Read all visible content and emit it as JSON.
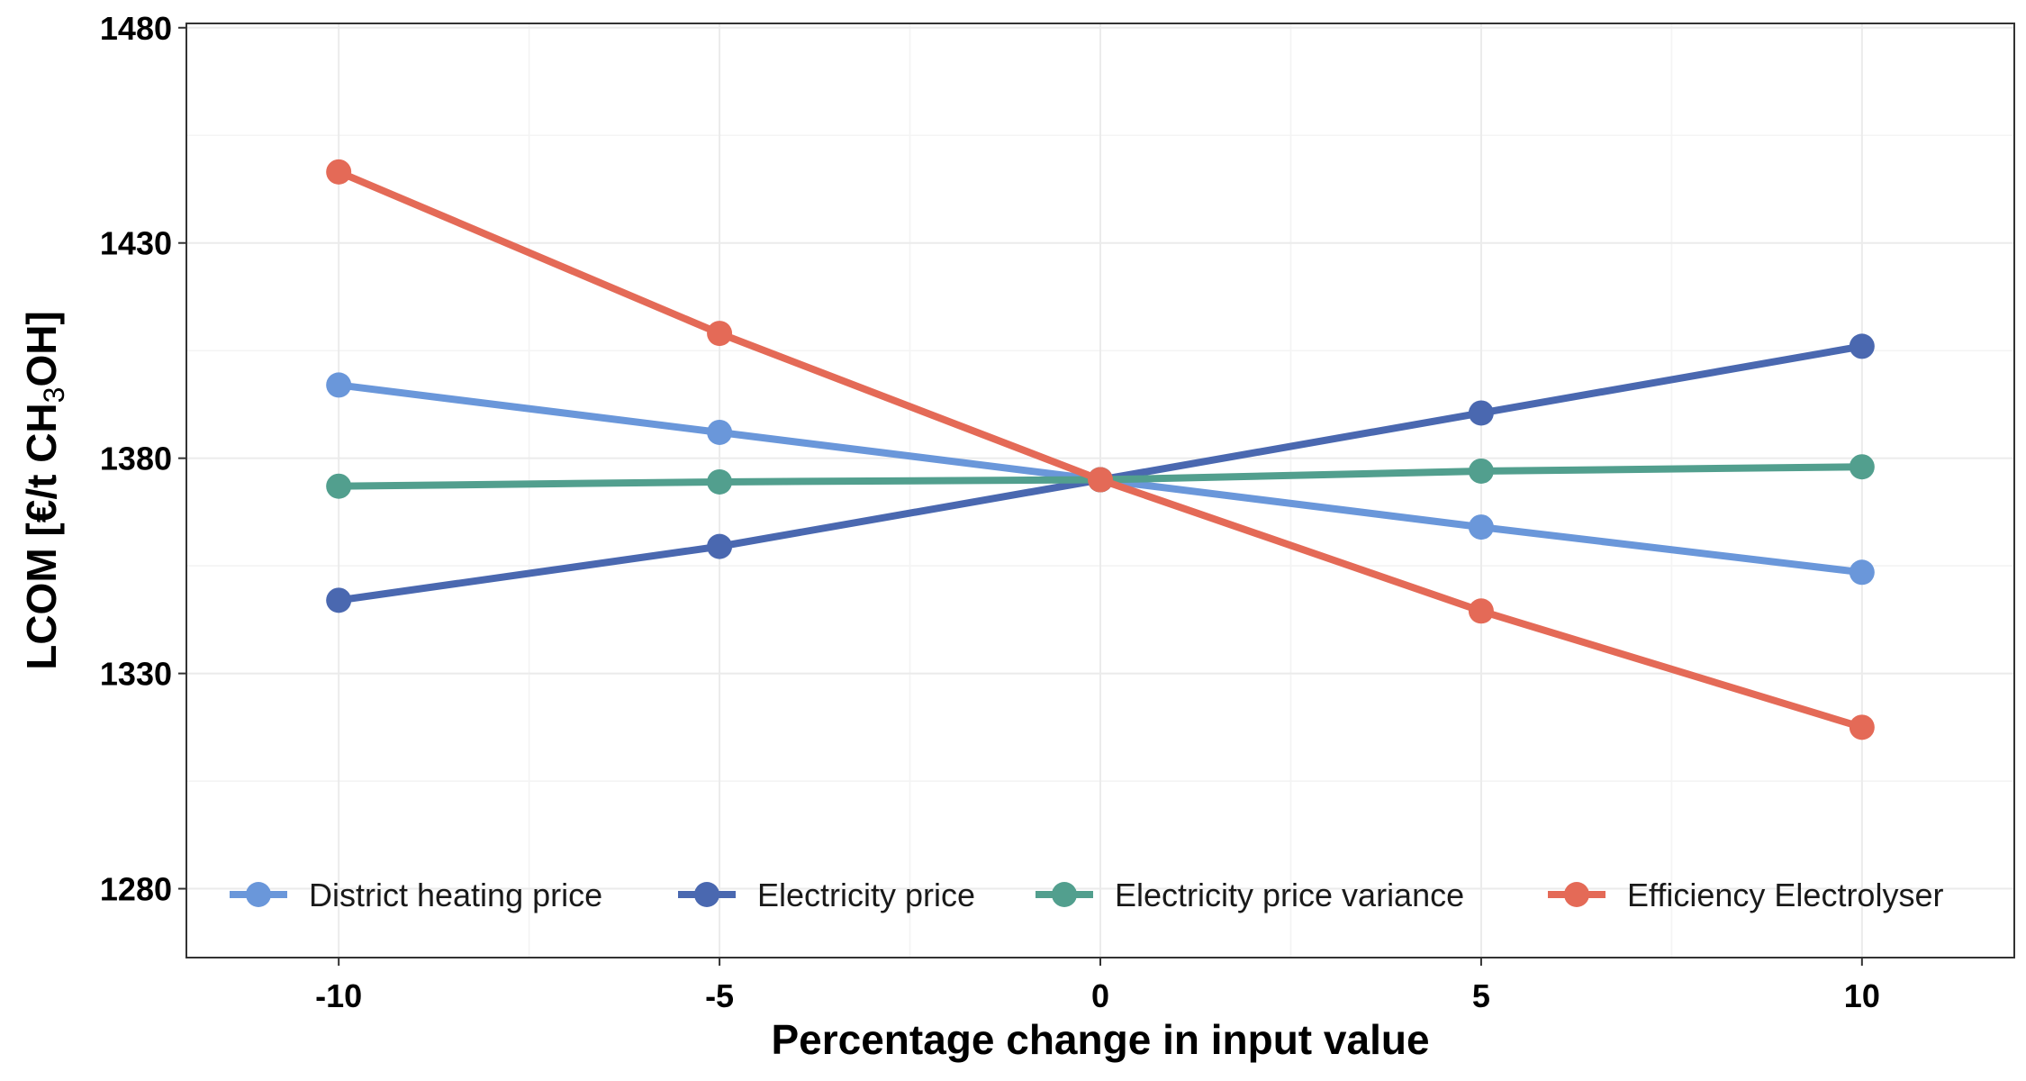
{
  "chart_data": {
    "type": "line",
    "x": [
      -10,
      -5,
      0,
      5,
      10
    ],
    "x_ticks": [
      "-10",
      "-5",
      "0",
      "5",
      "10"
    ],
    "y_ticks": [
      "1280",
      "1330",
      "1380",
      "1430",
      "1480"
    ],
    "xlim": [
      -12,
      12
    ],
    "ylim": [
      1264,
      1481
    ],
    "xlabel": "Percentage change in input value",
    "ylabel": {
      "prefix": "LCOM [€/t CH",
      "subscript": "3",
      "suffix": "OH]"
    },
    "grid": true,
    "legend_position": "bottom-inside",
    "series": [
      {
        "name": "District heating price",
        "color": "#6A97DA",
        "values": [
          1397,
          1386,
          1375,
          1364,
          1353.5
        ]
      },
      {
        "name": "Electricity price",
        "color": "#4A68B0",
        "values": [
          1347,
          1359.5,
          1375,
          1390.5,
          1406
        ]
      },
      {
        "name": "Electricity price variance",
        "color": "#529F8E",
        "values": [
          1373.5,
          1374.5,
          1375,
          1377,
          1378
        ]
      },
      {
        "name": "Efficiency Electrolyser",
        "color": "#E46A57",
        "values": [
          1446.5,
          1409,
          1375,
          1344.5,
          1317.5
        ]
      }
    ]
  }
}
